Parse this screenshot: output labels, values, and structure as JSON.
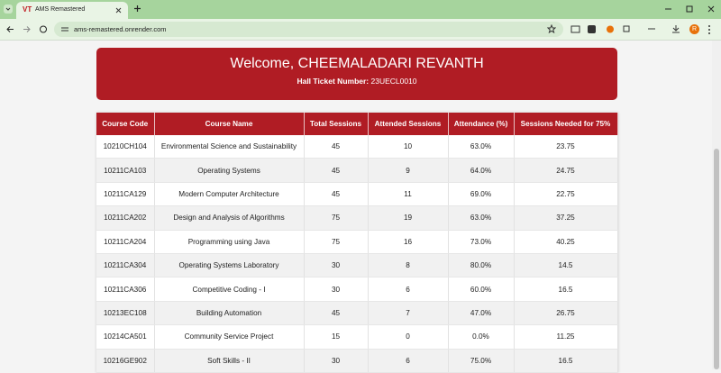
{
  "browser": {
    "favicon": "VT",
    "tab_title": "AMS Remastered",
    "url": "ams-remastered.onrender.com",
    "profile_initial": "R"
  },
  "header": {
    "welcome": "Welcome, CHEEMALADARI REVANTH",
    "ticket_label": "Hall Ticket Number:",
    "ticket_number": "23UECL0010"
  },
  "table": {
    "columns": [
      "Course Code",
      "Course Name",
      "Total Sessions",
      "Attended Sessions",
      "Attendance (%)",
      "Sessions Needed for 75%"
    ],
    "rows": [
      [
        "10210CH104",
        "Environmental Science and Sustainability",
        "45",
        "10",
        "63.0%",
        "23.75"
      ],
      [
        "10211CA103",
        "Operating Systems",
        "45",
        "9",
        "64.0%",
        "24.75"
      ],
      [
        "10211CA129",
        "Modern Computer Architecture",
        "45",
        "11",
        "69.0%",
        "22.75"
      ],
      [
        "10211CA202",
        "Design and Analysis of Algorithms",
        "75",
        "19",
        "63.0%",
        "37.25"
      ],
      [
        "10211CA204",
        "Programming using Java",
        "75",
        "16",
        "73.0%",
        "40.25"
      ],
      [
        "10211CA304",
        "Operating Systems Laboratory",
        "30",
        "8",
        "80.0%",
        "14.5"
      ],
      [
        "10211CA306",
        "Competitive Coding - I",
        "30",
        "6",
        "60.0%",
        "16.5"
      ],
      [
        "10213EC108",
        "Building Automation",
        "45",
        "7",
        "47.0%",
        "26.75"
      ],
      [
        "10214CA501",
        "Community Service Project",
        "15",
        "0",
        "0.0%",
        "11.25"
      ],
      [
        "10216GE902",
        "Soft Skills - II",
        "30",
        "6",
        "75.0%",
        "16.5"
      ]
    ]
  }
}
